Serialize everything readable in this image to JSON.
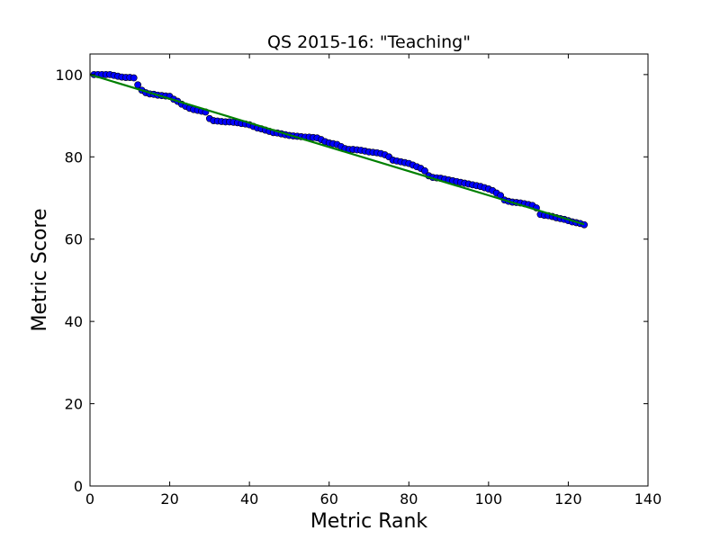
{
  "chart_data": {
    "type": "scatter",
    "title": "QS 2015-16: \"Teaching\"",
    "xlabel": "Metric Rank",
    "ylabel": "Metric Score",
    "xlim": [
      0,
      140
    ],
    "ylim": [
      0,
      105
    ],
    "xticks": [
      0,
      20,
      40,
      60,
      80,
      100,
      120,
      140
    ],
    "yticks": [
      0,
      20,
      40,
      60,
      80,
      100
    ],
    "grid": false,
    "legend": "none",
    "colors": {
      "points": "#0000ff",
      "point_edge": "#000000",
      "fit_line": "#008000",
      "axes": "#000000",
      "background": "#ffffff"
    },
    "series": [
      {
        "type": "scatter",
        "x": [
          1,
          2,
          3,
          4,
          5,
          6,
          7,
          8,
          9,
          10,
          11,
          12,
          13,
          14,
          15,
          16,
          17,
          18,
          19,
          20,
          21,
          22,
          23,
          24,
          25,
          26,
          27,
          28,
          29,
          30,
          31,
          32,
          33,
          34,
          35,
          36,
          37,
          38,
          39,
          40,
          41,
          42,
          43,
          44,
          45,
          46,
          47,
          48,
          49,
          50,
          51,
          52,
          53,
          54,
          55,
          56,
          57,
          58,
          59,
          60,
          61,
          62,
          63,
          64,
          65,
          66,
          67,
          68,
          69,
          70,
          71,
          72,
          73,
          74,
          75,
          76,
          77,
          78,
          79,
          80,
          81,
          82,
          83,
          84,
          85,
          86,
          87,
          88,
          89,
          90,
          91,
          92,
          93,
          94,
          95,
          96,
          97,
          98,
          99,
          100,
          101,
          102,
          103,
          104,
          105,
          106,
          107,
          108,
          109,
          110,
          111,
          112,
          113,
          114,
          115,
          116,
          117,
          118,
          119,
          120,
          121,
          122,
          123,
          124
        ],
        "y": [
          100,
          100,
          100,
          100,
          100,
          99.8,
          99.6,
          99.4,
          99.3,
          99.3,
          99.2,
          97.5,
          96.2,
          95.6,
          95.3,
          95.2,
          95,
          94.9,
          94.8,
          94.7,
          94,
          93.5,
          92.8,
          92.3,
          91.8,
          91.5,
          91.3,
          91.1,
          90.9,
          89.3,
          88.8,
          88.7,
          88.6,
          88.5,
          88.5,
          88.4,
          88.3,
          88.1,
          88,
          87.8,
          87.4,
          87,
          86.8,
          86.5,
          86.2,
          85.9,
          85.8,
          85.6,
          85.4,
          85.2,
          85.1,
          85,
          84.9,
          84.8,
          84.8,
          84.7,
          84.6,
          84.2,
          83.7,
          83.4,
          83.2,
          83,
          82.5,
          82,
          81.8,
          81.8,
          81.7,
          81.6,
          81.4,
          81.2,
          81.1,
          81,
          80.8,
          80.5,
          80,
          79.2,
          79,
          78.8,
          78.6,
          78.4,
          78,
          77.6,
          77.2,
          76.6,
          75.4,
          75,
          74.9,
          74.8,
          74.6,
          74.4,
          74.2,
          74,
          73.8,
          73.6,
          73.4,
          73.2,
          73,
          72.8,
          72.5,
          72.2,
          71.8,
          71.2,
          70.6,
          69.5,
          69.2,
          69,
          68.9,
          68.8,
          68.6,
          68.4,
          68.2,
          67.6,
          66,
          65.8,
          65.7,
          65.5,
          65.2,
          65,
          64.8,
          64.5,
          64.2,
          64,
          63.8,
          63.5
        ]
      },
      {
        "type": "line",
        "x": [
          0,
          124
        ],
        "y": [
          100,
          63.6
        ]
      }
    ]
  }
}
